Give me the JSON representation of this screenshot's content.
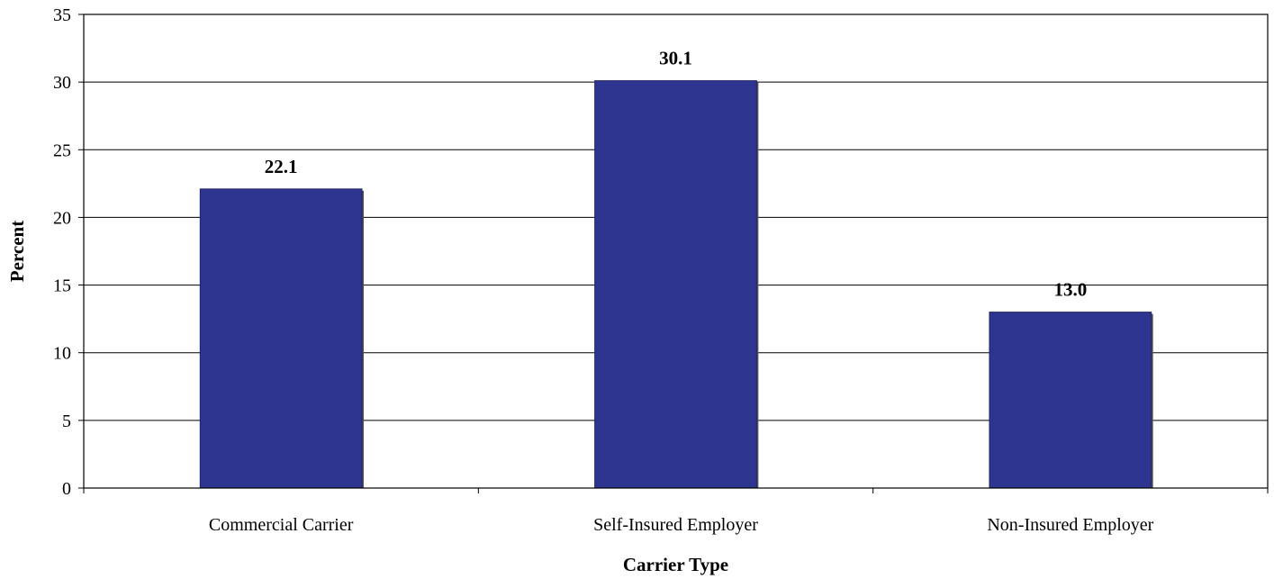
{
  "chart_data": {
    "type": "bar",
    "categories": [
      "Commercial Carrier",
      "Self-Insured Employer",
      "Non-Insured Employer"
    ],
    "values": [
      22.1,
      30.1,
      13.0
    ],
    "data_labels": [
      "22.1",
      "30.1",
      "13.0"
    ],
    "xlabel": "Carrier Type",
    "ylabel": "Percent",
    "ylim": [
      0,
      35
    ],
    "yticks": [
      0,
      5,
      10,
      15,
      20,
      25,
      30,
      35
    ],
    "grid": true,
    "bar_color": "#2E3591"
  }
}
